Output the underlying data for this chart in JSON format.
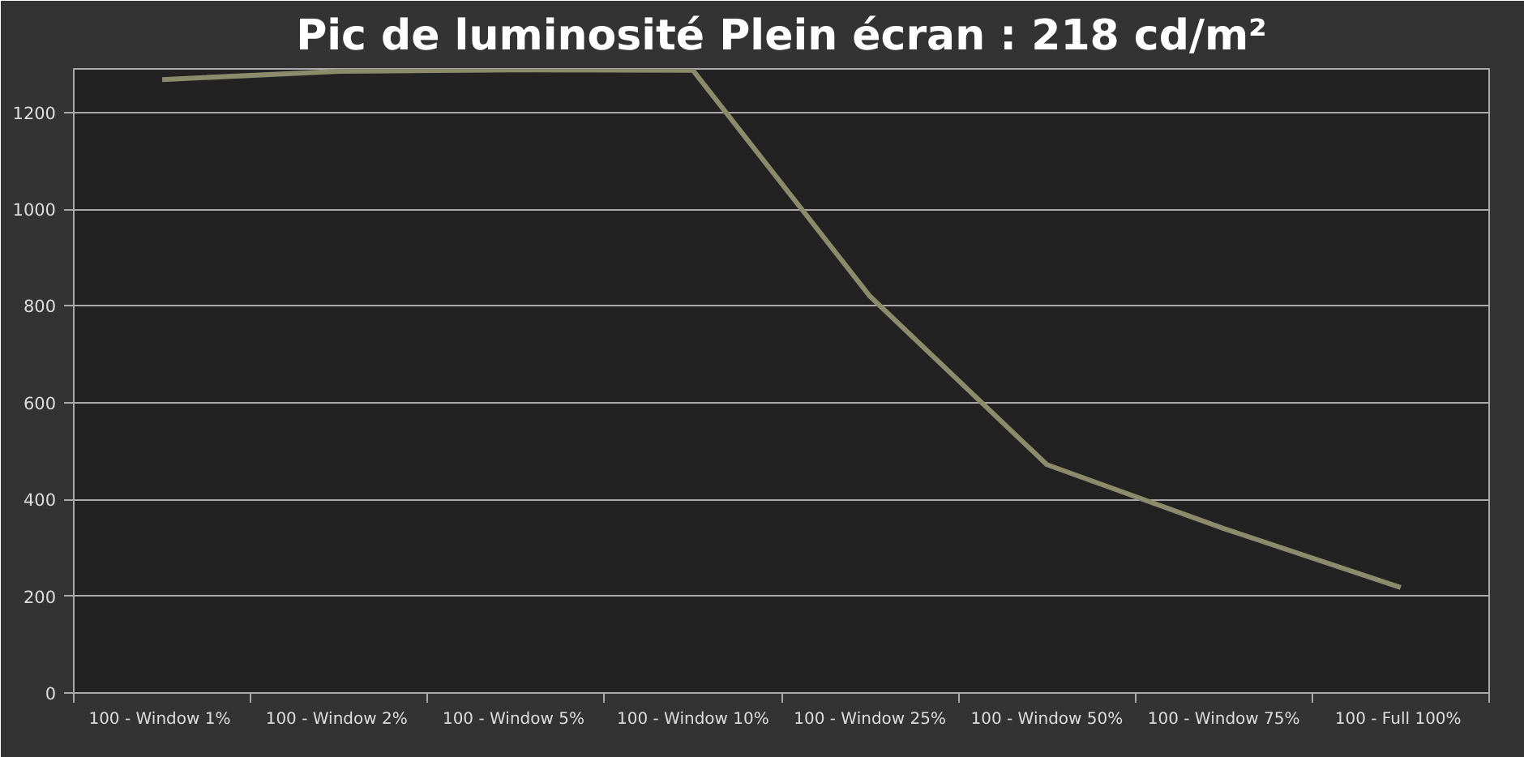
{
  "chart_data": {
    "type": "line",
    "title": "Pic de luminosité Plein écran : 218 cd/m²",
    "categories": [
      "100 - Window  1%",
      "100 - Window  2%",
      "100 - Window  5%",
      "100 - Window 10%",
      "100 - Window 25%",
      "100 - Window 50%",
      "100 - Window 75%",
      "100 - Full  100%"
    ],
    "series": [
      {
        "color": "#8c8c6c",
        "values": [
          1268,
          1285,
          1288,
          1287,
          820,
          472,
          340,
          218
        ]
      }
    ],
    "ylim": [
      0,
      1290
    ],
    "yticks": [
      0,
      200,
      400,
      600,
      800,
      1000,
      1200
    ],
    "grid": "y",
    "marker": "none",
    "line_style": "solid"
  }
}
